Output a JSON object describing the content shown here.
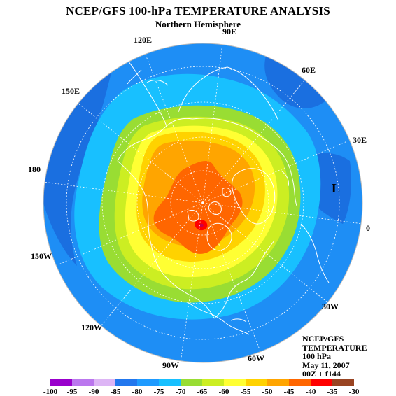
{
  "header": {
    "title": "NCEP/GFS 100-hPa TEMPERATURE ANALYSIS",
    "subtitle": "Northern Hemisphere"
  },
  "map": {
    "projection": "north-polar-stereographic",
    "longitude_labels": [
      "90E",
      "60E",
      "30E",
      "0",
      "30W",
      "60W",
      "90W",
      "120W",
      "150W",
      "180",
      "150E",
      "120E"
    ],
    "pressure_system": "L",
    "coastline_color": "#ffffff",
    "graticule_color": "#ffffff"
  },
  "info": {
    "line1": "NCEP/GFS",
    "line2": "TEMPERATURE",
    "line3": "100 hPa",
    "line4": "May 11, 2007",
    "line5": "00Z + f144"
  },
  "colorbar": {
    "labels": [
      "-100",
      "-95",
      "-90",
      "-85",
      "-80",
      "-75",
      "-70",
      "-65",
      "-60",
      "-55",
      "-50",
      "-45",
      "-40",
      "-35",
      "-30"
    ],
    "colors": [
      "#9900cc",
      "#bb77ee",
      "#ddb5f5",
      "#2277ee",
      "#1f9bff",
      "#18c0ff",
      "#99dd33",
      "#ccee22",
      "#ffff33",
      "#ffd200",
      "#ffa500",
      "#ff6600",
      "#ff0000",
      "#994422",
      "#777777"
    ]
  }
}
